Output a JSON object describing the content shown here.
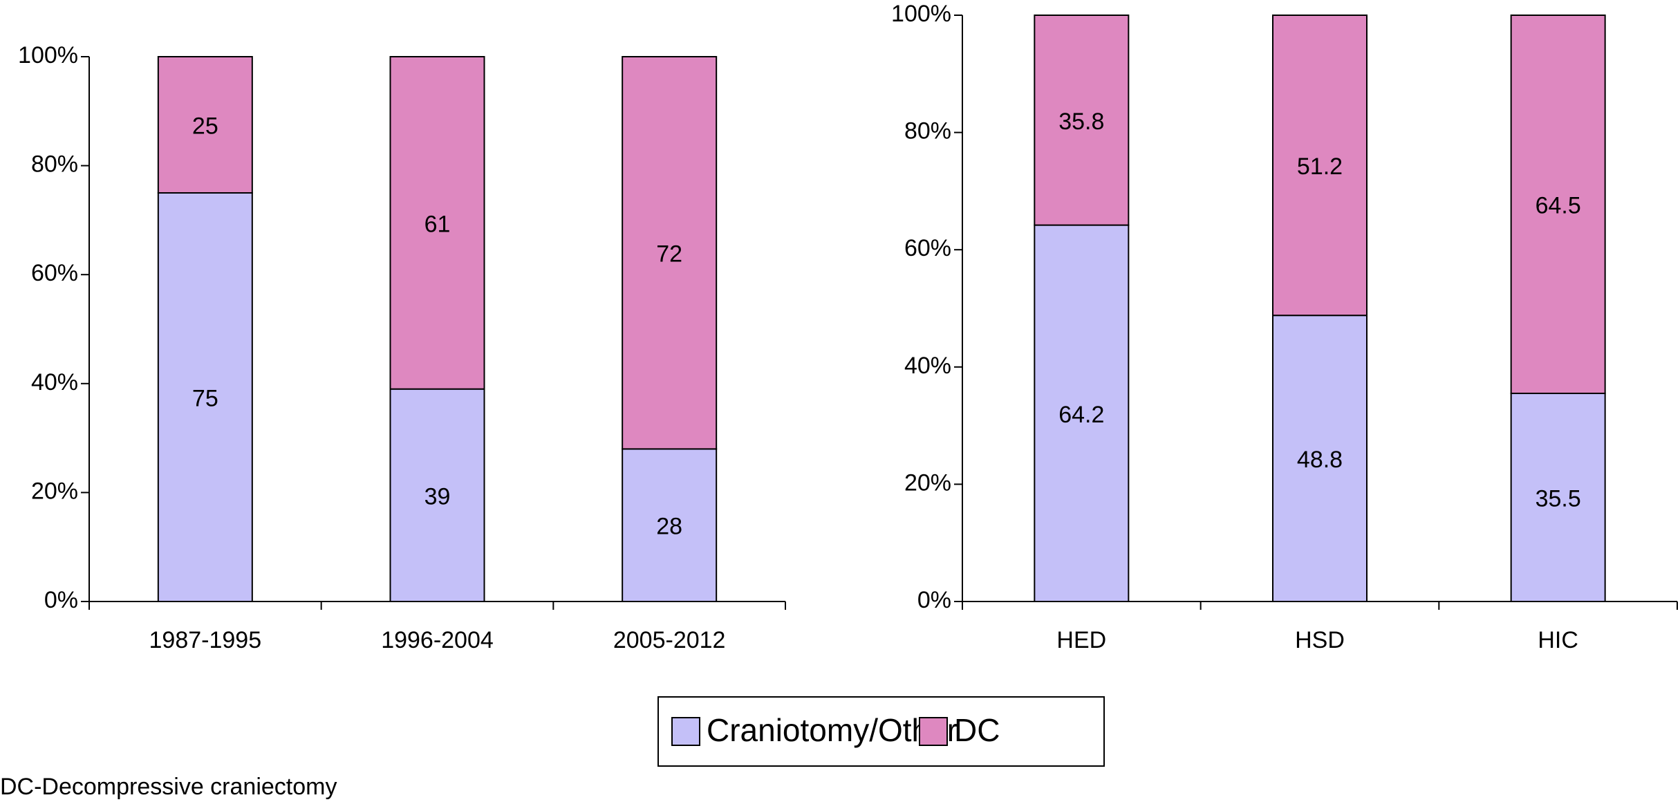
{
  "chart_data": [
    {
      "type": "stacked_bar",
      "categories": [
        "1987-1995",
        "1996-2004",
        "2005-2012"
      ],
      "series": [
        {
          "name": "Craniotomy/Other",
          "color": "#c4c0f8",
          "values": [
            75,
            39,
            28
          ]
        },
        {
          "name": "DC",
          "color": "#de88c0",
          "values": [
            25,
            61,
            72
          ]
        }
      ],
      "ylim": [
        0,
        100
      ],
      "yticks": [
        {
          "value": 0,
          "label": "0%"
        },
        {
          "value": 20,
          "label": "20%"
        },
        {
          "value": 40,
          "label": "40%"
        },
        {
          "value": 60,
          "label": "60%"
        },
        {
          "value": 80,
          "label": "80%"
        },
        {
          "value": 100,
          "label": "100%"
        }
      ]
    },
    {
      "type": "stacked_bar",
      "categories": [
        "HED",
        "HSD",
        "HIC"
      ],
      "series": [
        {
          "name": "Craniotomy/Other",
          "color": "#c4c0f8",
          "values": [
            64.2,
            48.8,
            35.5
          ]
        },
        {
          "name": "DC",
          "color": "#de88c0",
          "values": [
            35.8,
            51.2,
            64.5
          ]
        }
      ],
      "ylim": [
        0,
        100
      ],
      "yticks": [
        {
          "value": 0,
          "label": "0%"
        },
        {
          "value": 20,
          "label": "20%"
        },
        {
          "value": 40,
          "label": "40%"
        },
        {
          "value": 60,
          "label": "60%"
        },
        {
          "value": 80,
          "label": "80%"
        },
        {
          "value": 100,
          "label": "100%"
        }
      ]
    }
  ],
  "footnote": "DC-Decompressive craniectomy"
}
